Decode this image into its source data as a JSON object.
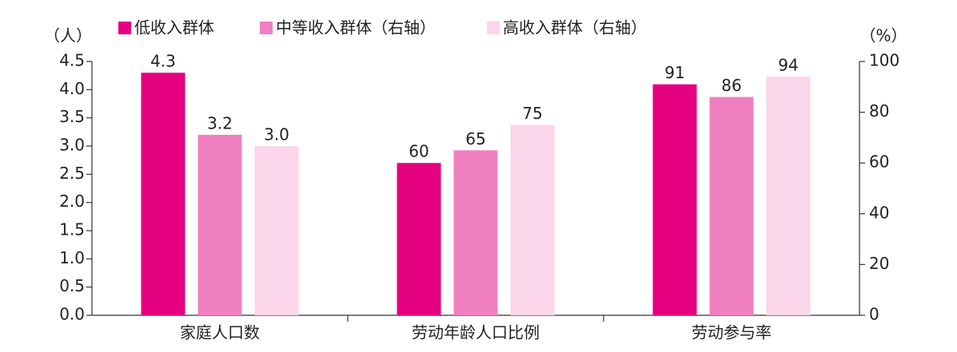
{
  "chart_data": {
    "type": "bar",
    "y_label": "（人）",
    "y2_label": "（%）",
    "categories": [
      "家庭人口数",
      "劳动年龄人口比例",
      "劳动参与率"
    ],
    "category_axes": [
      "y",
      "y2",
      "y2"
    ],
    "series": [
      {
        "name": "低收入群体",
        "color": "#e4007f",
        "values": [
          4.3,
          60,
          91
        ],
        "value_labels": [
          "4.3",
          "60",
          "91"
        ]
      },
      {
        "name": "中等收入群体（右轴）",
        "color": "#f080c0",
        "values": [
          3.2,
          65,
          86
        ],
        "value_labels": [
          "3.2",
          "65",
          "86"
        ]
      },
      {
        "name": "高收入群体（右轴）",
        "color": "#fbd5ea",
        "values": [
          3.0,
          75,
          94
        ],
        "value_labels": [
          "3.0",
          "75",
          "94"
        ]
      }
    ],
    "ylim": [
      0,
      4.5
    ],
    "yticks": [
      {
        "value": 0,
        "label": "0.0"
      },
      0.5,
      {
        "value": 1,
        "label": "1.0"
      },
      1.5,
      {
        "value": 2,
        "label": "2.0"
      },
      2.5,
      {
        "value": 3,
        "label": "3.0"
      },
      3.5,
      {
        "value": 4,
        "label": "4.0"
      },
      4.5
    ],
    "y2lim": [
      0,
      100
    ],
    "y2ticks": [
      0,
      20,
      40,
      60,
      80,
      100
    ],
    "grid": false,
    "legend": "top"
  }
}
